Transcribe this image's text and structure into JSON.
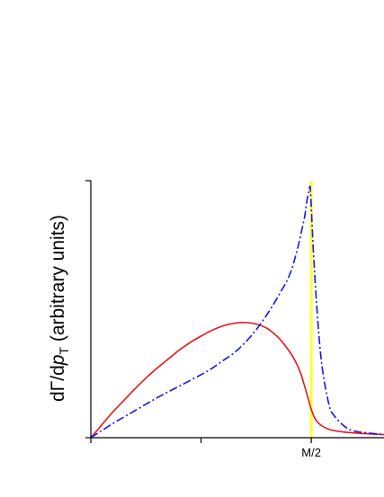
{
  "chart_data": {
    "type": "line",
    "title": "",
    "xlabel": "",
    "ylabel": {
      "prefix": "dΓ/d",
      "var": "p",
      "sub": "T",
      "suffix": " (arbitrary units)"
    },
    "xlim": [
      0,
      1.33
    ],
    "ylim": [
      0,
      1.0
    ],
    "x_ticks": [
      {
        "value": 0,
        "label": ""
      },
      {
        "value": 0.5,
        "label": ""
      },
      {
        "value": 1.0,
        "label": "M/2"
      }
    ],
    "vertical_line": {
      "x": 1.0,
      "color": "#ffff33"
    },
    "grid": false,
    "legend": "none",
    "series": [
      {
        "color": "#e8141b",
        "style": "solid",
        "x": [
          0,
          0.05,
          0.1,
          0.15,
          0.2,
          0.25,
          0.3,
          0.35,
          0.4,
          0.45,
          0.5,
          0.55,
          0.6,
          0.65,
          0.7,
          0.75,
          0.8,
          0.85,
          0.88,
          0.92,
          0.95,
          0.97,
          0.99,
          1.0,
          1.02,
          1.05,
          1.1,
          1.2,
          1.33
        ],
        "values": [
          0,
          0.05,
          0.1,
          0.145,
          0.19,
          0.232,
          0.27,
          0.305,
          0.34,
          0.37,
          0.395,
          0.418,
          0.435,
          0.445,
          0.448,
          0.442,
          0.425,
          0.39,
          0.36,
          0.31,
          0.255,
          0.2,
          0.14,
          0.11,
          0.07,
          0.045,
          0.028,
          0.018,
          0.012
        ]
      },
      {
        "color": "#1616e8",
        "style": "dashdot",
        "x": [
          0,
          0.1,
          0.2,
          0.3,
          0.4,
          0.5,
          0.55,
          0.6,
          0.65,
          0.7,
          0.75,
          0.8,
          0.85,
          0.9,
          0.93,
          0.95,
          0.97,
          0.98,
          0.99,
          0.995,
          1.0,
          1.01,
          1.03,
          1.05,
          1.08,
          1.1,
          1.15,
          1.2,
          1.33
        ],
        "values": [
          0,
          0.055,
          0.105,
          0.155,
          0.2,
          0.245,
          0.27,
          0.3,
          0.33,
          0.37,
          0.42,
          0.48,
          0.55,
          0.63,
          0.71,
          0.78,
          0.86,
          0.92,
          0.96,
          0.975,
          0.9,
          0.72,
          0.45,
          0.27,
          0.13,
          0.09,
          0.045,
          0.025,
          0.012
        ]
      }
    ]
  }
}
